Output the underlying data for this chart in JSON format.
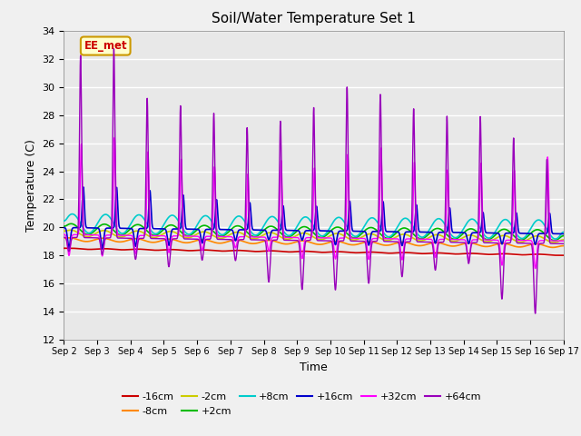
{
  "title": "Soil/Water Temperature Set 1",
  "xlabel": "Time",
  "ylabel": "Temperature (C)",
  "ylim": [
    12,
    34
  ],
  "yticks": [
    12,
    14,
    16,
    18,
    20,
    22,
    24,
    26,
    28,
    30,
    32,
    34
  ],
  "xlim_days": [
    0,
    15
  ],
  "x_tick_labels": [
    "Sep 2",
    "Sep 3",
    "Sep 4",
    "Sep 5",
    "Sep 6",
    "Sep 7",
    "Sep 8",
    "Sep 9",
    "Sep 10",
    "Sep 11",
    "Sep 12",
    "Sep 13",
    "Sep 14",
    "Sep 15",
    "Sep 16",
    "Sep 17"
  ],
  "series_colors": {
    "-16cm": "#cc0000",
    "-8cm": "#ff8800",
    "-2cm": "#cccc00",
    "+2cm": "#00bb00",
    "+8cm": "#00cccc",
    "+16cm": "#0000cc",
    "+32cm": "#ff00ff",
    "+64cm": "#9900bb"
  },
  "legend_labels": [
    "-16cm",
    "-8cm",
    "-2cm",
    "+2cm",
    "+8cm",
    "+16cm",
    "+32cm",
    "+64cm"
  ],
  "annotation_text": "EE_met",
  "annotation_bg": "#ffffcc",
  "annotation_border": "#cc9900",
  "annotation_text_color": "#cc0000",
  "plot_bg_color": "#e8e8e8"
}
